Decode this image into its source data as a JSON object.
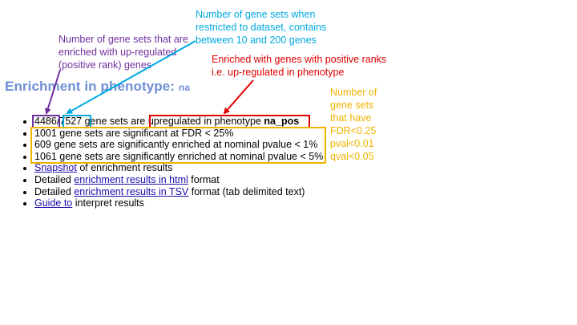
{
  "annotations": {
    "purple": [
      "Number of gene sets that are",
      "enriched with up-regulated",
      "(positive rank) genes"
    ],
    "blue": [
      "Number of gene sets when",
      "restricted to dataset, contains",
      "between 10 and 200 genes"
    ],
    "red": [
      "Enriched with genes with positive ranks",
      "i.e. up-regulated in phenotype"
    ],
    "orange": [
      "Number of",
      "gene sets",
      "that have",
      "FDR<0.25",
      "pval<0.01",
      "qval<0.05"
    ]
  },
  "heading": {
    "text": "Enrichment in phenotype:",
    "phenotype": "na"
  },
  "results": {
    "line1": {
      "count": "4486",
      "slash": "/",
      "total": "7527",
      "middle": "gene sets are",
      "upreg_text": "upregulated in phenotype",
      "phenotype_label": "na_pos"
    },
    "fdr_line": "1001 gene sets are significant at FDR < 25%",
    "pval1_line": "609 gene sets are significantly enriched at nominal pvalue < 1%",
    "pval5_line": "1061 gene sets are significantly enriched at nominal pvalue < 5%",
    "snapshot": {
      "link": "Snapshot",
      "rest": "of enrichment results"
    },
    "html_report": {
      "prefix": "Detailed",
      "link": "enrichment results in html",
      "suffix": "format"
    },
    "tsv_report": {
      "prefix": "Detailed",
      "link": "enrichment results in TSV",
      "suffix": "format (tab delimited text)"
    },
    "guide": {
      "link": "Guide to",
      "rest": "interpret results"
    }
  },
  "colors": {
    "purple": "#7030a0",
    "blue": "#00a9e0",
    "red": "#e00000",
    "orange": "#f0b400",
    "heading": "#6f8fd6",
    "link": "#1a0dab"
  }
}
